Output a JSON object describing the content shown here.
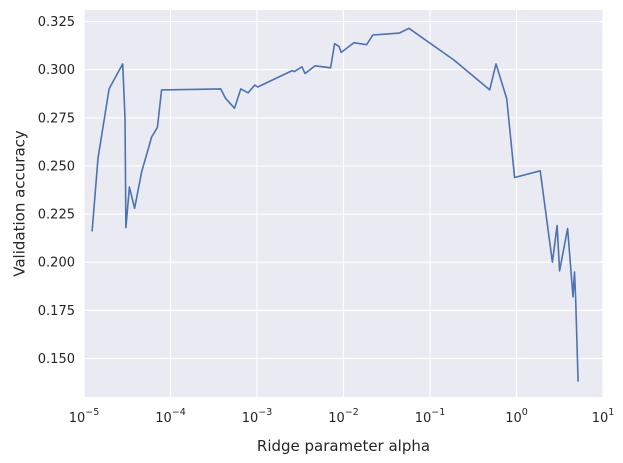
{
  "chart_data": {
    "type": "line",
    "title": "",
    "xlabel": "Ridge parameter alpha",
    "ylabel": "Validation accuracy",
    "x_scale": "log",
    "xlim": [
      1e-05,
      10
    ],
    "ylim": [
      0.13,
      0.331
    ],
    "grid": true,
    "x_ticks": [
      {
        "value": 1e-05,
        "base": "10",
        "exp": "−5"
      },
      {
        "value": 0.0001,
        "base": "10",
        "exp": "−4"
      },
      {
        "value": 0.001,
        "base": "10",
        "exp": "−3"
      },
      {
        "value": 0.01,
        "base": "10",
        "exp": "−2"
      },
      {
        "value": 0.1,
        "base": "10",
        "exp": "−1"
      },
      {
        "value": 1,
        "base": "10",
        "exp": "0"
      },
      {
        "value": 10,
        "base": "10",
        "exp": "1"
      }
    ],
    "y_ticks": [
      {
        "value": 0.15,
        "label": "0.150"
      },
      {
        "value": 0.175,
        "label": "0.175"
      },
      {
        "value": 0.2,
        "label": "0.200"
      },
      {
        "value": 0.225,
        "label": "0.225"
      },
      {
        "value": 0.25,
        "label": "0.250"
      },
      {
        "value": 0.275,
        "label": "0.275"
      },
      {
        "value": 0.3,
        "label": "0.300"
      },
      {
        "value": 0.325,
        "label": "0.325"
      }
    ],
    "colors": {
      "background": "#eaeaf2",
      "grid": "#ffffff",
      "line": "#4c72b0",
      "text": "#262626"
    },
    "series": [
      {
        "x": [
          1.24e-05,
          1.45e-05,
          1.95e-05,
          2.8e-05,
          2.98e-05,
          3.05e-05,
          3.35e-05,
          3.85e-05,
          4.65e-05,
          6.05e-05,
          7.05e-05,
          7.9e-05,
          0.00038,
          0.000435,
          0.00055,
          0.00065,
          0.00079,
          0.00094,
          0.00102,
          0.00255,
          0.0027,
          0.0033,
          0.0036,
          0.0047,
          0.0071,
          0.0079,
          0.0089,
          0.0094,
          0.0132,
          0.0185,
          0.0218,
          0.044,
          0.057,
          0.19,
          0.49,
          0.58,
          0.77,
          0.95,
          1.88,
          2.6,
          2.95,
          3.15,
          3.9,
          4.5,
          4.68,
          4.82,
          5.15
        ],
        "y": [
          0.216,
          0.254,
          0.29,
          0.303,
          0.275,
          0.218,
          0.239,
          0.228,
          0.247,
          0.265,
          0.27,
          0.2895,
          0.29,
          0.285,
          0.28,
          0.29,
          0.288,
          0.292,
          0.291,
          0.2995,
          0.299,
          0.3015,
          0.298,
          0.302,
          0.301,
          0.3135,
          0.312,
          0.309,
          0.314,
          0.313,
          0.318,
          0.319,
          0.3215,
          0.305,
          0.2895,
          0.303,
          0.285,
          0.244,
          0.2475,
          0.2,
          0.219,
          0.1955,
          0.2175,
          0.182,
          0.195,
          0.182,
          0.138
        ]
      }
    ]
  }
}
